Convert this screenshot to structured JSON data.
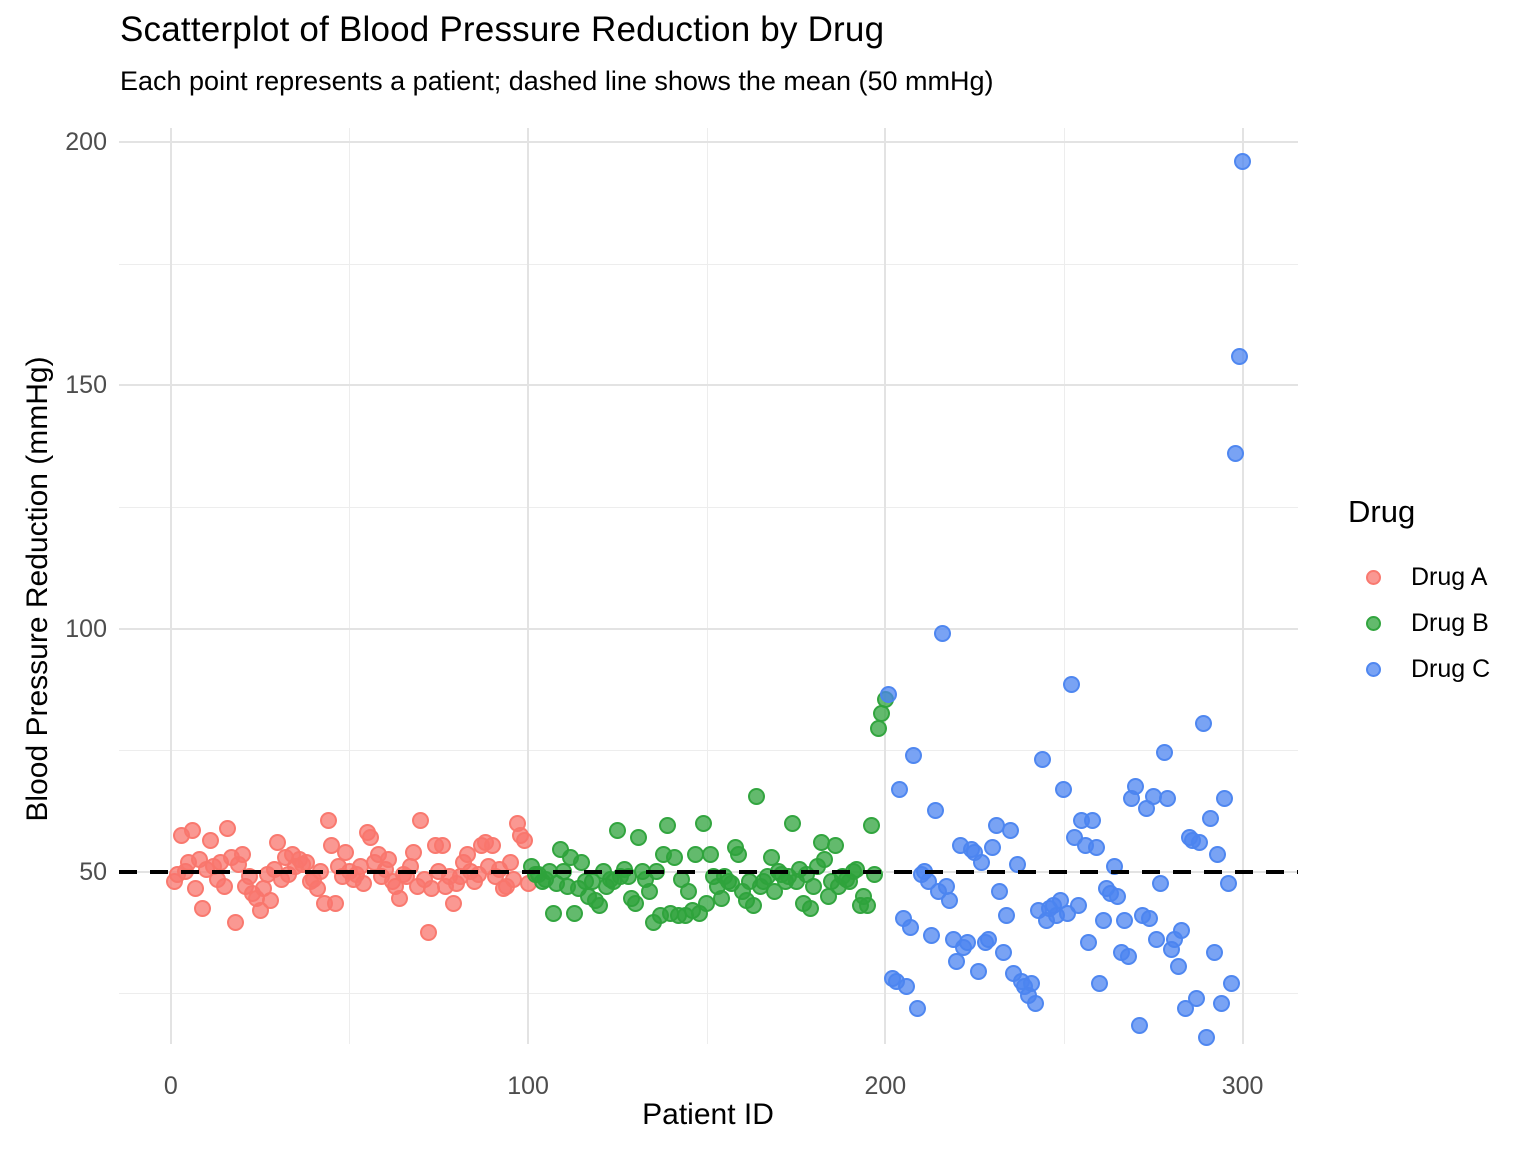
{
  "header": {
    "title": "Scatterplot of Blood Pressure Reduction by Drug",
    "subtitle": "Each point represents a patient; dashed line shows the mean (50 mmHg)"
  },
  "legend": {
    "title": "Drug",
    "position": "right"
  },
  "chart_data": {
    "type": "scatter",
    "title": "Scatterplot of Blood Pressure Reduction by Drug",
    "subtitle": "Each point represents a patient; dashed line shows the mean (50 mmHg)",
    "xlabel": "Patient ID",
    "ylabel": "Blood Pressure Reduction (mmHg)",
    "grid": true,
    "legend_position": "right",
    "x_ticks": [
      0,
      100,
      200,
      300
    ],
    "x_minor_ticks": [
      50,
      150,
      250
    ],
    "y_ticks": [
      50,
      100,
      150,
      200
    ],
    "y_minor_ticks": [
      25,
      75,
      125,
      175
    ],
    "x_domain": [
      -14.5,
      315.5
    ],
    "y_domain": [
      14.6,
      202.9
    ],
    "mean_line": {
      "value": 50,
      "style": "dashed",
      "color": "#000000"
    },
    "series": [
      {
        "name": "Drug A",
        "color": "#F8766D",
        "points": [
          [
            1,
            48
          ],
          [
            2,
            49.5
          ],
          [
            3,
            57.5
          ],
          [
            4,
            50
          ],
          [
            5,
            52
          ],
          [
            6,
            58.5
          ],
          [
            7,
            46.5
          ],
          [
            8,
            52.5
          ],
          [
            9,
            42.5
          ],
          [
            10,
            50.5
          ],
          [
            11,
            56.5
          ],
          [
            12,
            51
          ],
          [
            13,
            48.5
          ],
          [
            14,
            52
          ],
          [
            15,
            47
          ],
          [
            16,
            59
          ],
          [
            17,
            53
          ],
          [
            18,
            39.5
          ],
          [
            19,
            51.5
          ],
          [
            20,
            53.5
          ],
          [
            21,
            47
          ],
          [
            22,
            49
          ],
          [
            23,
            45.5
          ],
          [
            24,
            44.5
          ],
          [
            25,
            42
          ],
          [
            26,
            46.5
          ],
          [
            27,
            49.5
          ],
          [
            28,
            44
          ],
          [
            29,
            50.5
          ],
          [
            30,
            56
          ],
          [
            31,
            48.5
          ],
          [
            32,
            53
          ],
          [
            33,
            49.5
          ],
          [
            34,
            53.5
          ],
          [
            35,
            51
          ],
          [
            36,
            52.5
          ],
          [
            37,
            51.5
          ],
          [
            38,
            52
          ],
          [
            39,
            48
          ],
          [
            40,
            48.5
          ],
          [
            41,
            46.5
          ],
          [
            42,
            50
          ],
          [
            43,
            43.5
          ],
          [
            44,
            60.5
          ],
          [
            45,
            55.5
          ],
          [
            46,
            43.5
          ],
          [
            47,
            51
          ],
          [
            48,
            49
          ],
          [
            49,
            54
          ],
          [
            50,
            50
          ],
          [
            51,
            48.5
          ],
          [
            52,
            49.5
          ],
          [
            53,
            51
          ],
          [
            54,
            47.5
          ],
          [
            55,
            58
          ],
          [
            56,
            57
          ],
          [
            57,
            52
          ],
          [
            58,
            53.5
          ],
          [
            59,
            49
          ],
          [
            60,
            50.5
          ],
          [
            61,
            52.5
          ],
          [
            62,
            48
          ],
          [
            63,
            47
          ],
          [
            64,
            44.5
          ],
          [
            65,
            49.5
          ],
          [
            66,
            49
          ],
          [
            67,
            51
          ],
          [
            68,
            54
          ],
          [
            69,
            47
          ],
          [
            70,
            60.5
          ],
          [
            71,
            48.5
          ],
          [
            72,
            37.5
          ],
          [
            73,
            46.5
          ],
          [
            74,
            55.5
          ],
          [
            75,
            50
          ],
          [
            76,
            55.5
          ],
          [
            77,
            47
          ],
          [
            78,
            49
          ],
          [
            79,
            43.5
          ],
          [
            80,
            47.5
          ],
          [
            81,
            49
          ],
          [
            82,
            52
          ],
          [
            83,
            53.5
          ],
          [
            84,
            50
          ],
          [
            85,
            48
          ],
          [
            86,
            49.5
          ],
          [
            87,
            55.5
          ],
          [
            88,
            56
          ],
          [
            89,
            51
          ],
          [
            90,
            55.5
          ],
          [
            91,
            49
          ],
          [
            92,
            50.5
          ],
          [
            93,
            46.5
          ],
          [
            94,
            47
          ],
          [
            95,
            52
          ],
          [
            96,
            48.5
          ],
          [
            97,
            60
          ],
          [
            98,
            57.5
          ],
          [
            99,
            56.5
          ],
          [
            100,
            47.5
          ]
        ]
      },
      {
        "name": "Drug B",
        "color": "#2FA33C",
        "points": [
          [
            101,
            51
          ],
          [
            102,
            49.5
          ],
          [
            103,
            49.5
          ],
          [
            104,
            48
          ],
          [
            105,
            48.5
          ],
          [
            106,
            50
          ],
          [
            107,
            41.5
          ],
          [
            108,
            47.5
          ],
          [
            109,
            54.5
          ],
          [
            110,
            50
          ],
          [
            111,
            47
          ],
          [
            112,
            53
          ],
          [
            113,
            41.5
          ],
          [
            114,
            46.5
          ],
          [
            115,
            52
          ],
          [
            116,
            48
          ],
          [
            117,
            45
          ],
          [
            118,
            48
          ],
          [
            119,
            44
          ],
          [
            120,
            43
          ],
          [
            121,
            50
          ],
          [
            122,
            47
          ],
          [
            123,
            48.5
          ],
          [
            124,
            48
          ],
          [
            125,
            58.5
          ],
          [
            126,
            49
          ],
          [
            127,
            50.5
          ],
          [
            128,
            49
          ],
          [
            129,
            44.5
          ],
          [
            130,
            43.5
          ],
          [
            131,
            57
          ],
          [
            132,
            50
          ],
          [
            133,
            48.5
          ],
          [
            134,
            46
          ],
          [
            135,
            39.5
          ],
          [
            136,
            50
          ],
          [
            137,
            41
          ],
          [
            138,
            53.5
          ],
          [
            139,
            59.5
          ],
          [
            140,
            41.5
          ],
          [
            141,
            53
          ],
          [
            142,
            41
          ],
          [
            143,
            48.5
          ],
          [
            144,
            41
          ],
          [
            145,
            46
          ],
          [
            146,
            42
          ],
          [
            147,
            53.5
          ],
          [
            148,
            41.5
          ],
          [
            149,
            60
          ],
          [
            150,
            43.5
          ],
          [
            151,
            53.5
          ],
          [
            152,
            49
          ],
          [
            153,
            47
          ],
          [
            154,
            44.5
          ],
          [
            155,
            49
          ],
          [
            156,
            48
          ],
          [
            157,
            47.5
          ],
          [
            158,
            55
          ],
          [
            159,
            53.5
          ],
          [
            160,
            46
          ],
          [
            161,
            44
          ],
          [
            162,
            48
          ],
          [
            163,
            43
          ],
          [
            164,
            65.5
          ],
          [
            165,
            47
          ],
          [
            166,
            48
          ],
          [
            167,
            49
          ],
          [
            168,
            53
          ],
          [
            169,
            46
          ],
          [
            170,
            50
          ],
          [
            171,
            49.5
          ],
          [
            172,
            48
          ],
          [
            173,
            49
          ],
          [
            174,
            60
          ],
          [
            175,
            48
          ],
          [
            176,
            50.5
          ],
          [
            177,
            43.5
          ],
          [
            178,
            49.5
          ],
          [
            179,
            42.5
          ],
          [
            180,
            47
          ],
          [
            181,
            51
          ],
          [
            182,
            56
          ],
          [
            183,
            52.5
          ],
          [
            184,
            45
          ],
          [
            185,
            48
          ],
          [
            186,
            55.5
          ],
          [
            187,
            47
          ],
          [
            188,
            49
          ],
          [
            189,
            48.5
          ],
          [
            190,
            48
          ],
          [
            191,
            50
          ],
          [
            192,
            50.5
          ],
          [
            193,
            43
          ],
          [
            194,
            45
          ],
          [
            195,
            43
          ],
          [
            196,
            59.5
          ],
          [
            197,
            49.5
          ],
          [
            198,
            79.5
          ],
          [
            199,
            82.5
          ],
          [
            200,
            85.5
          ]
        ]
      },
      {
        "name": "Drug C",
        "color": "#4C84F0",
        "points": [
          [
            201,
            86.5
          ],
          [
            202,
            28
          ],
          [
            203,
            27.5
          ],
          [
            204,
            67
          ],
          [
            205,
            40.5
          ],
          [
            206,
            26.5
          ],
          [
            207,
            38.5
          ],
          [
            208,
            74
          ],
          [
            209,
            22
          ],
          [
            210,
            49.5
          ],
          [
            211,
            50
          ],
          [
            212,
            48
          ],
          [
            213,
            37
          ],
          [
            214,
            62.5
          ],
          [
            215,
            46
          ],
          [
            216,
            99
          ],
          [
            217,
            47
          ],
          [
            218,
            44
          ],
          [
            219,
            36
          ],
          [
            220,
            31.5
          ],
          [
            221,
            55.5
          ],
          [
            222,
            34.5
          ],
          [
            223,
            35.5
          ],
          [
            224,
            54.5
          ],
          [
            225,
            54
          ],
          [
            226,
            29.5
          ],
          [
            227,
            52
          ],
          [
            228,
            35.5
          ],
          [
            229,
            36
          ],
          [
            230,
            55
          ],
          [
            231,
            59.5
          ],
          [
            232,
            46
          ],
          [
            233,
            33.5
          ],
          [
            234,
            41
          ],
          [
            235,
            58.5
          ],
          [
            236,
            29
          ],
          [
            237,
            51.5
          ],
          [
            238,
            27.5
          ],
          [
            239,
            26.5
          ],
          [
            240,
            24.5
          ],
          [
            241,
            27
          ],
          [
            242,
            23
          ],
          [
            243,
            42
          ],
          [
            244,
            73
          ],
          [
            245,
            40
          ],
          [
            246,
            42.5
          ],
          [
            247,
            43
          ],
          [
            248,
            41
          ],
          [
            249,
            44
          ],
          [
            250,
            67
          ],
          [
            251,
            41.5
          ],
          [
            252,
            88.5
          ],
          [
            253,
            57
          ],
          [
            254,
            43
          ],
          [
            255,
            60.5
          ],
          [
            256,
            55.5
          ],
          [
            257,
            35.5
          ],
          [
            258,
            60.5
          ],
          [
            259,
            55
          ],
          [
            260,
            27
          ],
          [
            261,
            40
          ],
          [
            262,
            46.5
          ],
          [
            263,
            45.5
          ],
          [
            264,
            51
          ],
          [
            265,
            45
          ],
          [
            266,
            33.5
          ],
          [
            267,
            40
          ],
          [
            268,
            32.5
          ],
          [
            269,
            65
          ],
          [
            270,
            67.5
          ],
          [
            271,
            18.5
          ],
          [
            272,
            41
          ],
          [
            273,
            63
          ],
          [
            274,
            40.5
          ],
          [
            275,
            65.5
          ],
          [
            276,
            36
          ],
          [
            277,
            47.5
          ],
          [
            278,
            74.5
          ],
          [
            279,
            65
          ],
          [
            280,
            34
          ],
          [
            281,
            36
          ],
          [
            282,
            30.5
          ],
          [
            283,
            38
          ],
          [
            284,
            22
          ],
          [
            285,
            57
          ],
          [
            286,
            56.5
          ],
          [
            287,
            24
          ],
          [
            288,
            56
          ],
          [
            289,
            80.5
          ],
          [
            290,
            16
          ],
          [
            291,
            61
          ],
          [
            292,
            33.5
          ],
          [
            293,
            53.5
          ],
          [
            294,
            23
          ],
          [
            295,
            65
          ],
          [
            296,
            47.5
          ],
          [
            297,
            27
          ],
          [
            298,
            136
          ],
          [
            299,
            156
          ],
          [
            300,
            196
          ]
        ]
      }
    ]
  }
}
